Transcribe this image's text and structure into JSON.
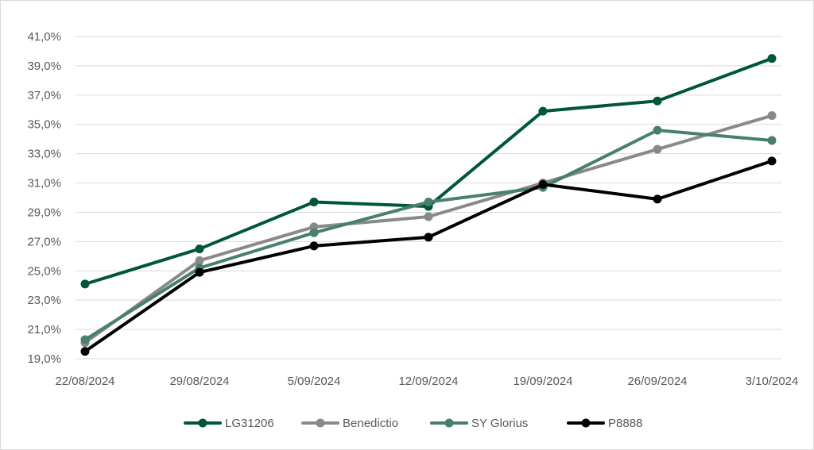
{
  "chart_data": {
    "type": "line",
    "title": "",
    "xlabel": "",
    "ylabel": "",
    "x": [
      "22/08/2024",
      "29/08/2024",
      "5/09/2024",
      "12/09/2024",
      "19/09/2024",
      "26/09/2024",
      "3/10/2024"
    ],
    "ylim": [
      19.0,
      41.0
    ],
    "yticks": [
      "19,0%",
      "21,0%",
      "23,0%",
      "25,0%",
      "27,0%",
      "29,0%",
      "31,0%",
      "33,0%",
      "35,0%",
      "37,0%",
      "39,0%",
      "41,0%"
    ],
    "y_unit": "%",
    "grid": true,
    "legend_position": "bottom",
    "series": [
      {
        "name": "LG31206",
        "color": "#00563b",
        "values": [
          24.1,
          26.5,
          29.7,
          29.4,
          35.9,
          36.6,
          39.5
        ]
      },
      {
        "name": "Benedictio",
        "color": "#898989",
        "values": [
          20.1,
          25.7,
          28.0,
          28.7,
          31.0,
          33.3,
          35.6
        ]
      },
      {
        "name": "SY Glorius",
        "color": "#47806b",
        "values": [
          20.3,
          25.2,
          27.6,
          29.7,
          30.7,
          34.6,
          33.9
        ]
      },
      {
        "name": "P8888",
        "color": "#000000",
        "values": [
          19.5,
          24.9,
          26.7,
          27.3,
          30.9,
          29.9,
          32.5
        ]
      }
    ]
  }
}
